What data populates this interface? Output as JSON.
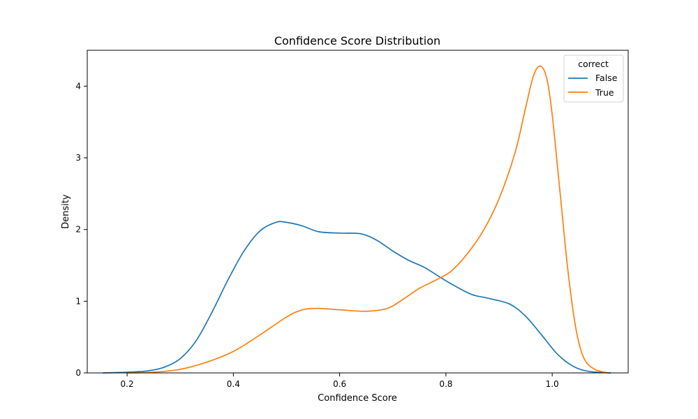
{
  "chart_data": {
    "type": "line",
    "title": "Confidence Score Distribution",
    "xlabel": "Confidence Score",
    "ylabel": "Density",
    "xlim": [
      0.125,
      1.143
    ],
    "ylim": [
      0,
      4.5
    ],
    "xticks": [
      0.2,
      0.4,
      0.6,
      0.8,
      1.0
    ],
    "xtick_labels": [
      "0.2",
      "0.4",
      "0.6",
      "0.8",
      "1.0"
    ],
    "yticks": [
      0,
      1,
      2,
      3,
      4
    ],
    "ytick_labels": [
      "0",
      "1",
      "2",
      "3",
      "4"
    ],
    "grid": false,
    "legend": {
      "title": "correct",
      "placement": "top-right"
    },
    "series": [
      {
        "name": "False",
        "color": "#1f77b4",
        "points": [
          [
            0.155,
            0.0
          ],
          [
            0.2,
            0.01
          ],
          [
            0.24,
            0.03
          ],
          [
            0.27,
            0.08
          ],
          [
            0.3,
            0.2
          ],
          [
            0.33,
            0.45
          ],
          [
            0.36,
            0.85
          ],
          [
            0.39,
            1.3
          ],
          [
            0.42,
            1.7
          ],
          [
            0.45,
            1.98
          ],
          [
            0.48,
            2.1
          ],
          [
            0.5,
            2.1
          ],
          [
            0.53,
            2.05
          ],
          [
            0.56,
            1.97
          ],
          [
            0.6,
            1.95
          ],
          [
            0.64,
            1.94
          ],
          [
            0.67,
            1.85
          ],
          [
            0.7,
            1.7
          ],
          [
            0.73,
            1.57
          ],
          [
            0.76,
            1.47
          ],
          [
            0.79,
            1.33
          ],
          [
            0.82,
            1.2
          ],
          [
            0.85,
            1.09
          ],
          [
            0.88,
            1.04
          ],
          [
            0.92,
            0.96
          ],
          [
            0.95,
            0.79
          ],
          [
            0.98,
            0.53
          ],
          [
            1.01,
            0.26
          ],
          [
            1.04,
            0.09
          ],
          [
            1.07,
            0.02
          ],
          [
            1.11,
            0.0
          ]
        ]
      },
      {
        "name": "True",
        "color": "#ff7f0e",
        "points": [
          [
            0.2,
            0.0
          ],
          [
            0.25,
            0.01
          ],
          [
            0.3,
            0.05
          ],
          [
            0.35,
            0.15
          ],
          [
            0.4,
            0.3
          ],
          [
            0.45,
            0.53
          ],
          [
            0.5,
            0.78
          ],
          [
            0.53,
            0.88
          ],
          [
            0.56,
            0.9
          ],
          [
            0.6,
            0.88
          ],
          [
            0.65,
            0.86
          ],
          [
            0.69,
            0.9
          ],
          [
            0.72,
            1.03
          ],
          [
            0.75,
            1.18
          ],
          [
            0.78,
            1.29
          ],
          [
            0.81,
            1.42
          ],
          [
            0.84,
            1.66
          ],
          [
            0.87,
            1.98
          ],
          [
            0.9,
            2.43
          ],
          [
            0.93,
            3.07
          ],
          [
            0.95,
            3.7
          ],
          [
            0.965,
            4.15
          ],
          [
            0.978,
            4.28
          ],
          [
            0.99,
            4.1
          ],
          [
            1.0,
            3.6
          ],
          [
            1.015,
            2.5
          ],
          [
            1.03,
            1.4
          ],
          [
            1.045,
            0.6
          ],
          [
            1.06,
            0.2
          ],
          [
            1.08,
            0.05
          ],
          [
            1.1,
            0.01
          ]
        ]
      }
    ]
  }
}
